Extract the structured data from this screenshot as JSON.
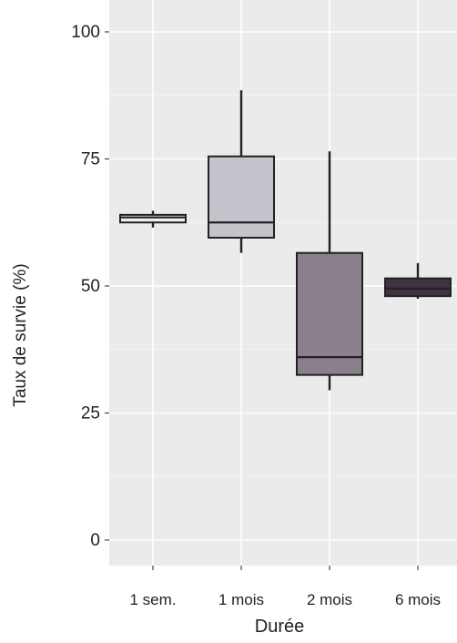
{
  "chart_data": {
    "type": "boxplot",
    "xlabel": "Durée",
    "ylabel": "Taux de survie (%)",
    "ylim": [
      -5,
      104
    ],
    "yticks": [
      0,
      25,
      50,
      75,
      100
    ],
    "ytick_labels": [
      "0",
      "25",
      "50",
      "75",
      "100"
    ],
    "grid": true,
    "legend": "none",
    "categories": [
      "1 sem.",
      "1 mois",
      "2 mois",
      "6 mois"
    ],
    "boxes": [
      {
        "category": "1 sem.",
        "whisker_low": 61.5,
        "q1": 62.5,
        "median": 63.5,
        "q3": 64,
        "whisker_high": 64.8,
        "fill": "#eeeeee"
      },
      {
        "category": "1 mois",
        "whisker_low": 56.5,
        "q1": 59.5,
        "median": 62.5,
        "q3": 75.5,
        "whisker_high": 88.5,
        "fill": "#c6c3cc"
      },
      {
        "category": "2 mois",
        "whisker_low": 29.5,
        "q1": 32.5,
        "median": 36,
        "q3": 56.5,
        "whisker_high": 76.5,
        "fill": "#8a7f8c"
      },
      {
        "category": "6 mois",
        "whisker_low": 47.5,
        "q1": 48,
        "median": 49.5,
        "q3": 51.5,
        "whisker_high": 54.5,
        "fill": "#3f3340"
      }
    ]
  },
  "colors": {
    "panel_background": "#ebebeb",
    "grid_major": "#ffffff",
    "grid_minor": "#f4f4f4",
    "outline": "#222222"
  }
}
